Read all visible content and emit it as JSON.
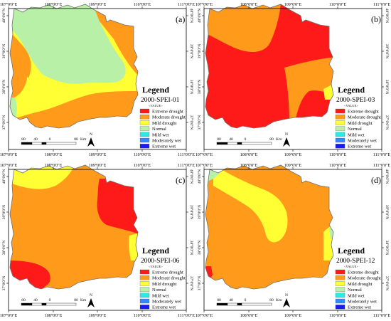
{
  "colors": {
    "extreme_drought": "#ff1a1a",
    "moderate_drought": "#ff9a1a",
    "mild_drought": "#ffff33",
    "normal": "#b8f0a8",
    "mild_wet": "#33e6e6",
    "moderately_wet": "#3388ff",
    "extreme_wet": "#1a1aff",
    "frame": "#000000",
    "text": "#000000"
  },
  "axes": {
    "x_labels": [
      "107°0'0\"E",
      "108°0'0\"E",
      "109°0'0\"E",
      "110°0'0\"E",
      "111°0'0\"E"
    ],
    "y_labels": [
      "40°0'0\"N",
      "39°0'0\"N",
      "38°0'0\"N",
      "37°0'0\"N"
    ]
  },
  "legend": {
    "title": "Legend",
    "value_caption": "<VALUE>",
    "classes": [
      "Extreme drought",
      "Moderate drought",
      "Mild drought",
      "Normal",
      "Mild wet",
      "Moderately wet",
      "Extreme wet"
    ]
  },
  "scalebar": {
    "ticks": [
      "80",
      "40",
      "0",
      "80"
    ],
    "unit": "Km",
    "north": "N"
  },
  "panels": [
    {
      "letter": "(a)",
      "subtitle": "2000-SPEI-01"
    },
    {
      "letter": "(b)",
      "subtitle": "2000-SPEI-03"
    },
    {
      "letter": "(c)",
      "subtitle": "2000-SPEI-06"
    },
    {
      "letter": "(d)",
      "subtitle": "2000-SPEI-12"
    }
  ]
}
